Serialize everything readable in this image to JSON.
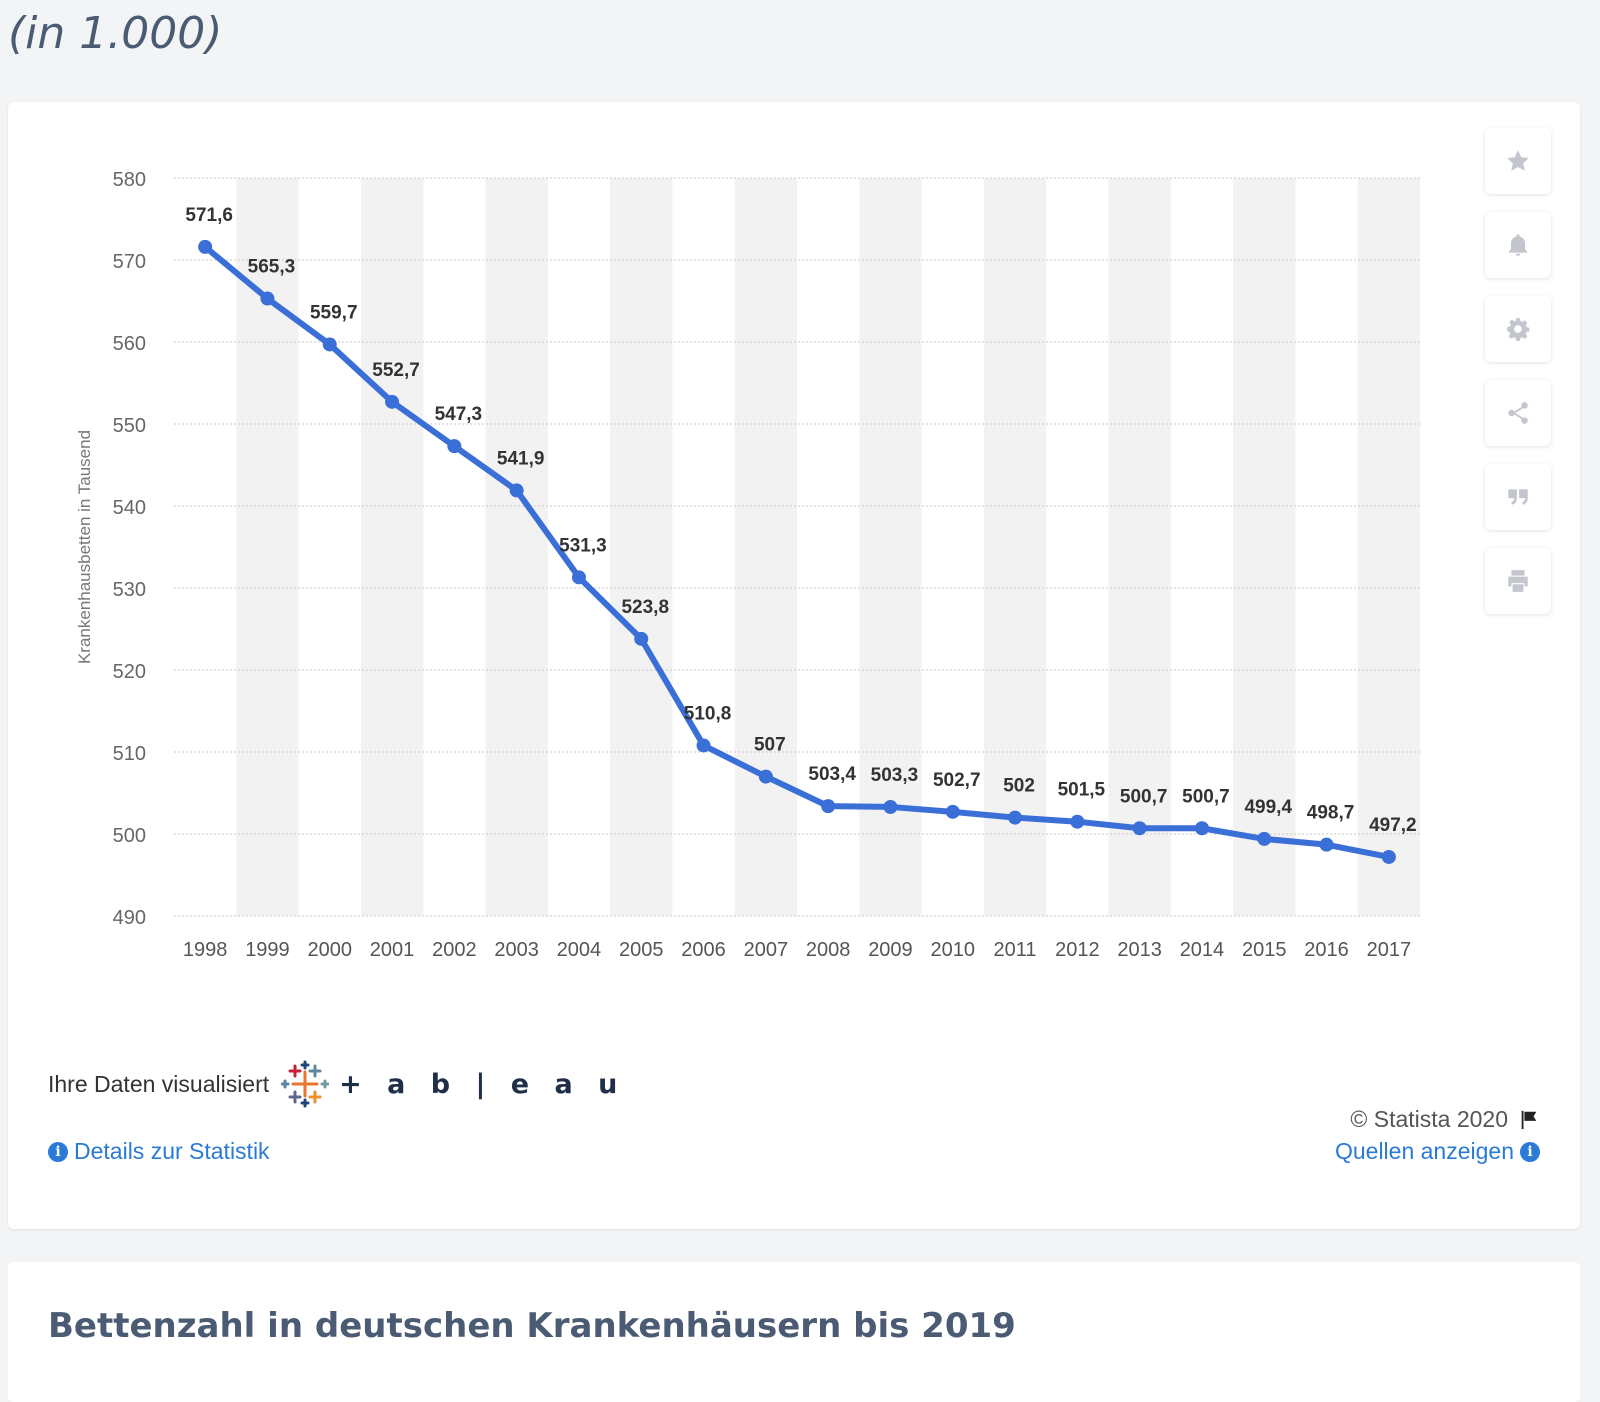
{
  "heading": "(in 1.000)",
  "section_title": "Bettenzahl in deutschen Krankenhäusern bis 2019",
  "footer": {
    "visualized_label": "Ihre Daten visualisiert",
    "tableau_word": "+ a b | e a u",
    "copyright": "© Statista 2020",
    "details_link": "Details zur Statistik",
    "sources_link": "Quellen anzeigen"
  },
  "tools": [
    {
      "name": "favorite",
      "icon": "star-icon"
    },
    {
      "name": "notify",
      "icon": "bell-icon"
    },
    {
      "name": "settings",
      "icon": "gear-icon"
    },
    {
      "name": "share",
      "icon": "share-icon"
    },
    {
      "name": "cite",
      "icon": "quote-icon"
    },
    {
      "name": "print",
      "icon": "print-icon"
    }
  ],
  "colors": {
    "line": "#3a6fd8",
    "band": "#f2f2f2",
    "grid": "#c8c8c8",
    "link": "#2a7ad6"
  },
  "chart_data": {
    "type": "line",
    "title": "",
    "xlabel": "",
    "ylabel": "Krankenhausbetten in Tausend",
    "ylim": [
      490,
      580
    ],
    "yticks": [
      490,
      500,
      510,
      520,
      530,
      540,
      550,
      560,
      570,
      580
    ],
    "grid": true,
    "x": [
      "1998",
      "1999",
      "2000",
      "2001",
      "2002",
      "2003",
      "2004",
      "2005",
      "2006",
      "2007",
      "2008",
      "2009",
      "2010",
      "2011",
      "2012",
      "2013",
      "2014",
      "2015",
      "2016",
      "2017"
    ],
    "values": [
      571.6,
      565.3,
      559.7,
      552.7,
      547.3,
      541.9,
      531.3,
      523.8,
      510.8,
      507,
      503.4,
      503.3,
      502.7,
      502,
      501.5,
      500.7,
      500.7,
      499.4,
      498.7,
      497.2
    ],
    "labels": [
      "571,6",
      "565,3",
      "559,7",
      "552,7",
      "547,3",
      "541,9",
      "531,3",
      "523,8",
      "510,8",
      "507",
      "503,4",
      "503,3",
      "502,7",
      "502",
      "501,5",
      "500,7",
      "500,7",
      "499,4",
      "498,7",
      "497,2"
    ]
  }
}
